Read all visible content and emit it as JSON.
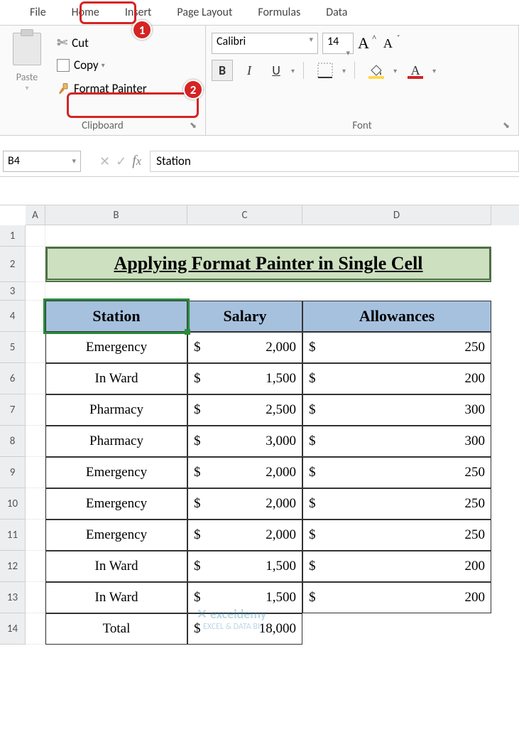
{
  "tabs": {
    "file": "File",
    "home": "Home",
    "insert": "Insert",
    "page_layout": "Page Layout",
    "formulas": "Formulas",
    "data": "Data"
  },
  "clipboard": {
    "paste": "Paste",
    "cut": "Cut",
    "copy": "Copy",
    "format_painter": "Format Painter",
    "group_label": "Clipboard"
  },
  "font": {
    "name": "Calibri",
    "size": "14",
    "group_label": "Font",
    "bold": "B",
    "italic": "I",
    "underline": "U",
    "grow": "A",
    "shrink": "A",
    "fill_color": "#ffd94a",
    "font_color": "#d52424"
  },
  "namebox": "B4",
  "formula": "Station",
  "columns": {
    "A": "A",
    "B": "B",
    "C": "C",
    "D": "D"
  },
  "rows": [
    "1",
    "2",
    "3",
    "4",
    "5",
    "6",
    "7",
    "8",
    "9",
    "10",
    "11",
    "12",
    "13",
    "14"
  ],
  "title": "Applying Format Painter in Single Cell",
  "table": {
    "header": {
      "station": "Station",
      "salary": "Salary",
      "allowances": "Allowances"
    },
    "currency": "$",
    "rows": [
      {
        "b": "Emergency",
        "c": "2,000",
        "d": "250"
      },
      {
        "b": "In Ward",
        "c": "1,500",
        "d": "200"
      },
      {
        "b": "Pharmacy",
        "c": "2,500",
        "d": "300"
      },
      {
        "b": "Pharmacy",
        "c": "3,000",
        "d": "300"
      },
      {
        "b": "Emergency",
        "c": "2,000",
        "d": "250"
      },
      {
        "b": "Emergency",
        "c": "2,000",
        "d": "250"
      },
      {
        "b": "Emergency",
        "c": "2,000",
        "d": "250"
      },
      {
        "b": "In Ward",
        "c": "1,500",
        "d": "200"
      },
      {
        "b": "In Ward",
        "c": "1,500",
        "d": "200"
      }
    ],
    "total_label": "Total",
    "total_value": "18,000"
  },
  "callouts": {
    "one": "1",
    "two": "2"
  },
  "watermark": {
    "big": "✕ exceldemy",
    "small": "EXCEL & DATA BI"
  },
  "colors": {
    "title_bg": "#cde0c0",
    "title_border": "#4d7045",
    "header_bg": "#a6c1de",
    "callout_border": "#d52424",
    "badge_bg": "#d52424",
    "selection": "#2a8a3a"
  }
}
